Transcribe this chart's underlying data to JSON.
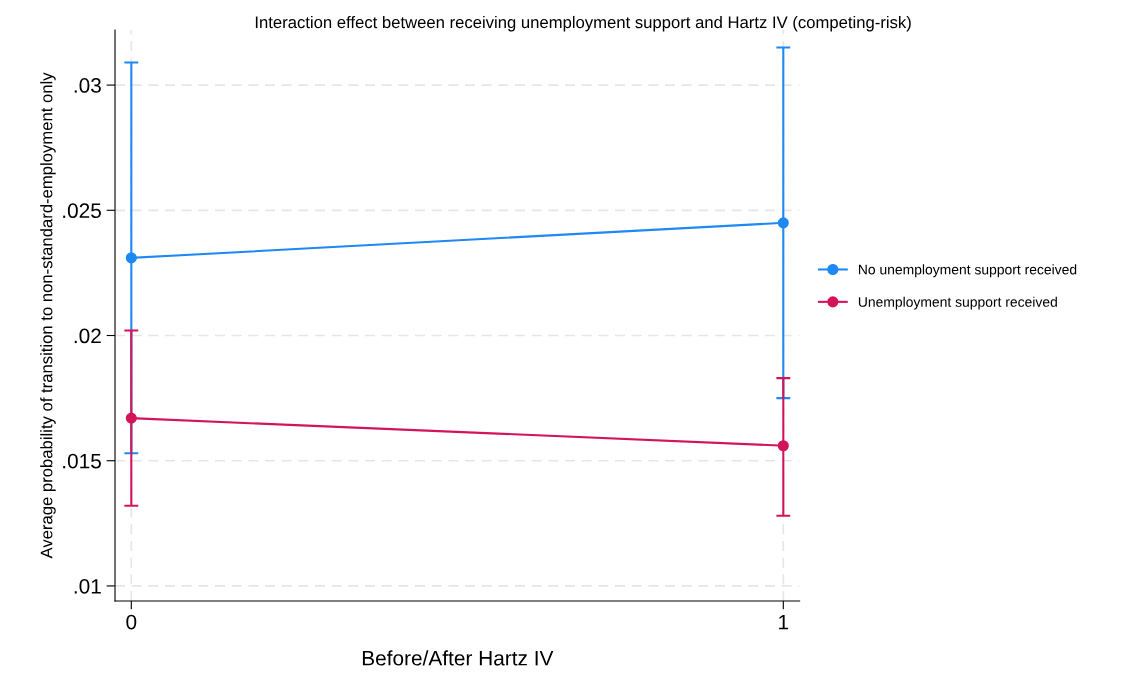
{
  "chart_data": {
    "type": "line",
    "title": "Interaction effect between receiving unemployment support and Hartz IV (competing-risk)",
    "xlabel": "Before/After Hartz IV",
    "ylabel": "Average probability of transition to non-standard-employment only",
    "x": [
      0,
      1
    ],
    "series": [
      {
        "name": "No unemployment support received",
        "color": "#1e88f5",
        "values": [
          0.0231,
          0.0245
        ],
        "errors": [
          [
            0.0153,
            0.0309
          ],
          [
            0.0175,
            0.0315
          ]
        ]
      },
      {
        "name": "Unemployment support received",
        "color": "#d4145a",
        "values": [
          0.0167,
          0.0156
        ],
        "errors": [
          [
            0.0132,
            0.0202
          ],
          [
            0.0128,
            0.0183
          ]
        ]
      }
    ],
    "xlim": [
      -0.025,
      1.025
    ],
    "xticks": [
      0,
      1
    ],
    "ylim": [
      0.0094,
      0.0322
    ],
    "yticks": [
      {
        "value": 0.01,
        "label": ".01"
      },
      {
        "value": 0.015,
        "label": ".015"
      },
      {
        "value": 0.02,
        "label": ".02"
      },
      {
        "value": 0.025,
        "label": ".025"
      },
      {
        "value": 0.03,
        "label": ".03"
      }
    ],
    "grid": true,
    "legend": "right",
    "marker": "circle",
    "line_style": "solid"
  }
}
